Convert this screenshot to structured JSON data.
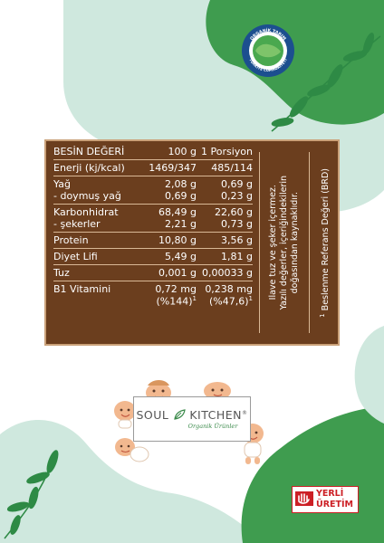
{
  "seal": {
    "text_top": "ORGANİK TARIM",
    "text_bottom": "TÜRKİYE CUMHURİYETİ"
  },
  "nutrition": {
    "header": {
      "name": "BESİN DEĞERİ",
      "per100": "100 g",
      "portion": "1 Porsiyon"
    },
    "energy": {
      "name": "Enerji (kj/kcal)",
      "per100": "1469/347",
      "portion": "485/114"
    },
    "fat": {
      "name": "Yağ",
      "per100": "2,08 g",
      "portion": "0,69 g"
    },
    "saturated": {
      "name": "- doymuş yağ",
      "per100": "0,69 g",
      "portion": "0,23 g"
    },
    "carbs": {
      "name": "Karbonhidrat",
      "per100": "68,49 g",
      "portion": "22,60 g"
    },
    "sugars": {
      "name": "- şekerler",
      "per100": "2,21 g",
      "portion": "0,73 g"
    },
    "protein": {
      "name": "Protein",
      "per100": "10,80 g",
      "portion": "3,56 g"
    },
    "fiber": {
      "name": "Diyet Lifi",
      "per100": "5,49 g",
      "portion": "1,81 g"
    },
    "salt": {
      "name": "Tuz",
      "per100": "0,001 g",
      "portion": "0,00033 g"
    },
    "b1": {
      "name": "B1 Vitamini",
      "per100": "0,72 mg",
      "per100_pct": "(%144)",
      "portion": "0,238 mg",
      "portion_pct": "(%47,6)",
      "sup": "1"
    }
  },
  "notes": {
    "line1": "İlave tuz ve şeker içermez.",
    "line2": "Yazılı değerler, içeriğindekilerin",
    "line3": "doğasından kaynaklıdır.",
    "footnote_sup": "1",
    "footnote": "Beslenme Referans Değeri (BRD)"
  },
  "brand": {
    "name_left": "SOUL",
    "name_right": "KITCHEN",
    "registered": "®",
    "sub": "Organik Ürünler"
  },
  "badge": {
    "line1": "YERLİ",
    "line2": "ÜRETİM"
  },
  "colors": {
    "panel": "#6b3e1e",
    "panel_border": "#caa179",
    "mint": "#cfe8de",
    "green": "#3f9c4f",
    "red": "#cc1f25"
  }
}
